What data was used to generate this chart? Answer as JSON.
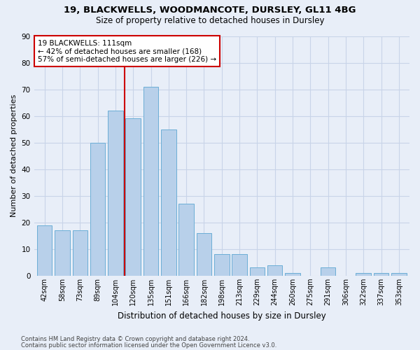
{
  "title1": "19, BLACKWELLS, WOODMANCOTE, DURSLEY, GL11 4BG",
  "title2": "Size of property relative to detached houses in Dursley",
  "xlabel": "Distribution of detached houses by size in Dursley",
  "ylabel": "Number of detached properties",
  "categories": [
    "42sqm",
    "58sqm",
    "73sqm",
    "89sqm",
    "104sqm",
    "120sqm",
    "135sqm",
    "151sqm",
    "166sqm",
    "182sqm",
    "198sqm",
    "213sqm",
    "229sqm",
    "244sqm",
    "260sqm",
    "275sqm",
    "291sqm",
    "306sqm",
    "322sqm",
    "337sqm",
    "353sqm"
  ],
  "values": [
    19,
    17,
    17,
    50,
    62,
    59,
    71,
    55,
    27,
    16,
    8,
    8,
    3,
    4,
    1,
    0,
    3,
    0,
    1,
    1,
    1
  ],
  "bar_color": "#b8d0ea",
  "bar_edge_color": "#6baed6",
  "bar_width": 0.85,
  "vline_x_index": 4.5,
  "vline_color": "#cc0000",
  "annotation_line1": "19 BLACKWELLS: 111sqm",
  "annotation_line2": "← 42% of detached houses are smaller (168)",
  "annotation_line3": "57% of semi-detached houses are larger (226) →",
  "annotation_box_color": "#ffffff",
  "annotation_box_edge": "#cc0000",
  "ylim": [
    0,
    90
  ],
  "yticks": [
    0,
    10,
    20,
    30,
    40,
    50,
    60,
    70,
    80,
    90
  ],
  "grid_color": "#c8d4e8",
  "background_color": "#e8eef8",
  "footer1": "Contains HM Land Registry data © Crown copyright and database right 2024.",
  "footer2": "Contains public sector information licensed under the Open Government Licence v3.0."
}
